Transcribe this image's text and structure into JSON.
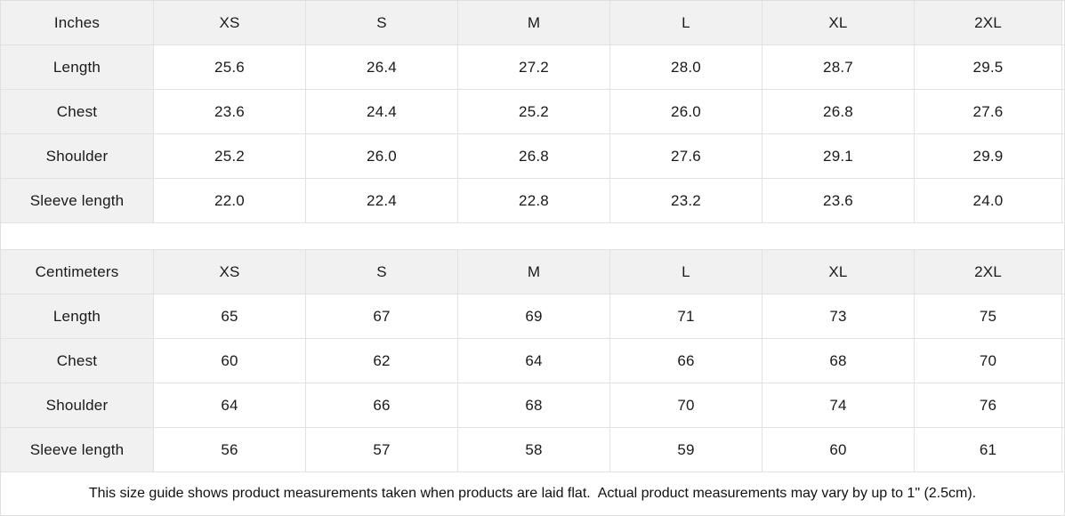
{
  "note": "This size guide shows product measurements taken when products are laid flat.  Actual product measurements may vary by up to 1\" (2.5cm).",
  "colors": {
    "header_bg": "#f1f1f1",
    "border": "#e2e2e2",
    "text": "#1a1a1a"
  },
  "tables": [
    {
      "unit_label": "Inches",
      "columns": [
        "XS",
        "S",
        "M",
        "L",
        "XL",
        "2XL"
      ],
      "rows": [
        {
          "label": "Length",
          "values": [
            "25.6",
            "26.4",
            "27.2",
            "28.0",
            "28.7",
            "29.5"
          ]
        },
        {
          "label": "Chest",
          "values": [
            "23.6",
            "24.4",
            "25.2",
            "26.0",
            "26.8",
            "27.6"
          ]
        },
        {
          "label": "Shoulder",
          "values": [
            "25.2",
            "26.0",
            "26.8",
            "27.6",
            "29.1",
            "29.9"
          ]
        },
        {
          "label": "Sleeve length",
          "values": [
            "22.0",
            "22.4",
            "22.8",
            "23.2",
            "23.6",
            "24.0"
          ]
        }
      ]
    },
    {
      "unit_label": "Centimeters",
      "columns": [
        "XS",
        "S",
        "M",
        "L",
        "XL",
        "2XL"
      ],
      "rows": [
        {
          "label": "Length",
          "values": [
            "65",
            "67",
            "69",
            "71",
            "73",
            "75"
          ]
        },
        {
          "label": "Chest",
          "values": [
            "60",
            "62",
            "64",
            "66",
            "68",
            "70"
          ]
        },
        {
          "label": "Shoulder",
          "values": [
            "64",
            "66",
            "68",
            "70",
            "74",
            "76"
          ]
        },
        {
          "label": "Sleeve length",
          "values": [
            "56",
            "57",
            "58",
            "59",
            "60",
            "61"
          ]
        }
      ]
    }
  ]
}
